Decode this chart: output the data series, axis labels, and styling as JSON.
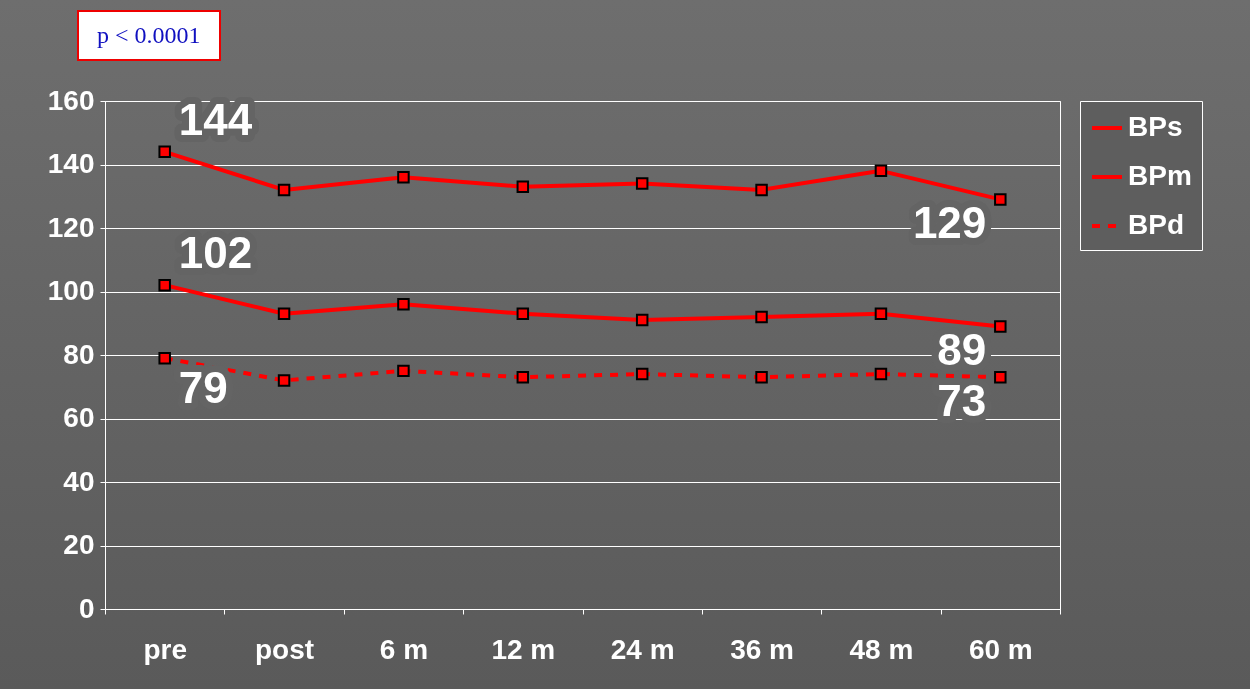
{
  "chart_data": {
    "type": "line",
    "categories": [
      "pre",
      "post",
      "6 m",
      "12 m",
      "24 m",
      "36 m",
      "48 m",
      "60 m"
    ],
    "series": [
      {
        "name": "BPs",
        "color": "#ff0000",
        "values": [
          144,
          132,
          136,
          133,
          134,
          132,
          138,
          129
        ],
        "value_labels": [
          "144",
          null,
          null,
          null,
          null,
          null,
          null,
          "129"
        ]
      },
      {
        "name": "BPm",
        "color": "#ff0000",
        "values": [
          102,
          93,
          96,
          93,
          91,
          92,
          93,
          89
        ],
        "value_labels": [
          "102",
          null,
          null,
          null,
          null,
          null,
          null,
          "89"
        ]
      },
      {
        "name": "BPd",
        "color": "#ff0000",
        "line_style": "dashed",
        "values": [
          79,
          72,
          75,
          73,
          74,
          73,
          74,
          73
        ],
        "value_labels": [
          "79",
          null,
          null,
          null,
          null,
          null,
          null,
          "73"
        ]
      }
    ],
    "ylim": [
      0,
      160
    ],
    "yticks": [
      0,
      20,
      40,
      60,
      80,
      100,
      120,
      140,
      160
    ],
    "grid": "y",
    "legend": "right",
    "marker": "square",
    "annotations": [
      "p < 0.0001"
    ]
  }
}
